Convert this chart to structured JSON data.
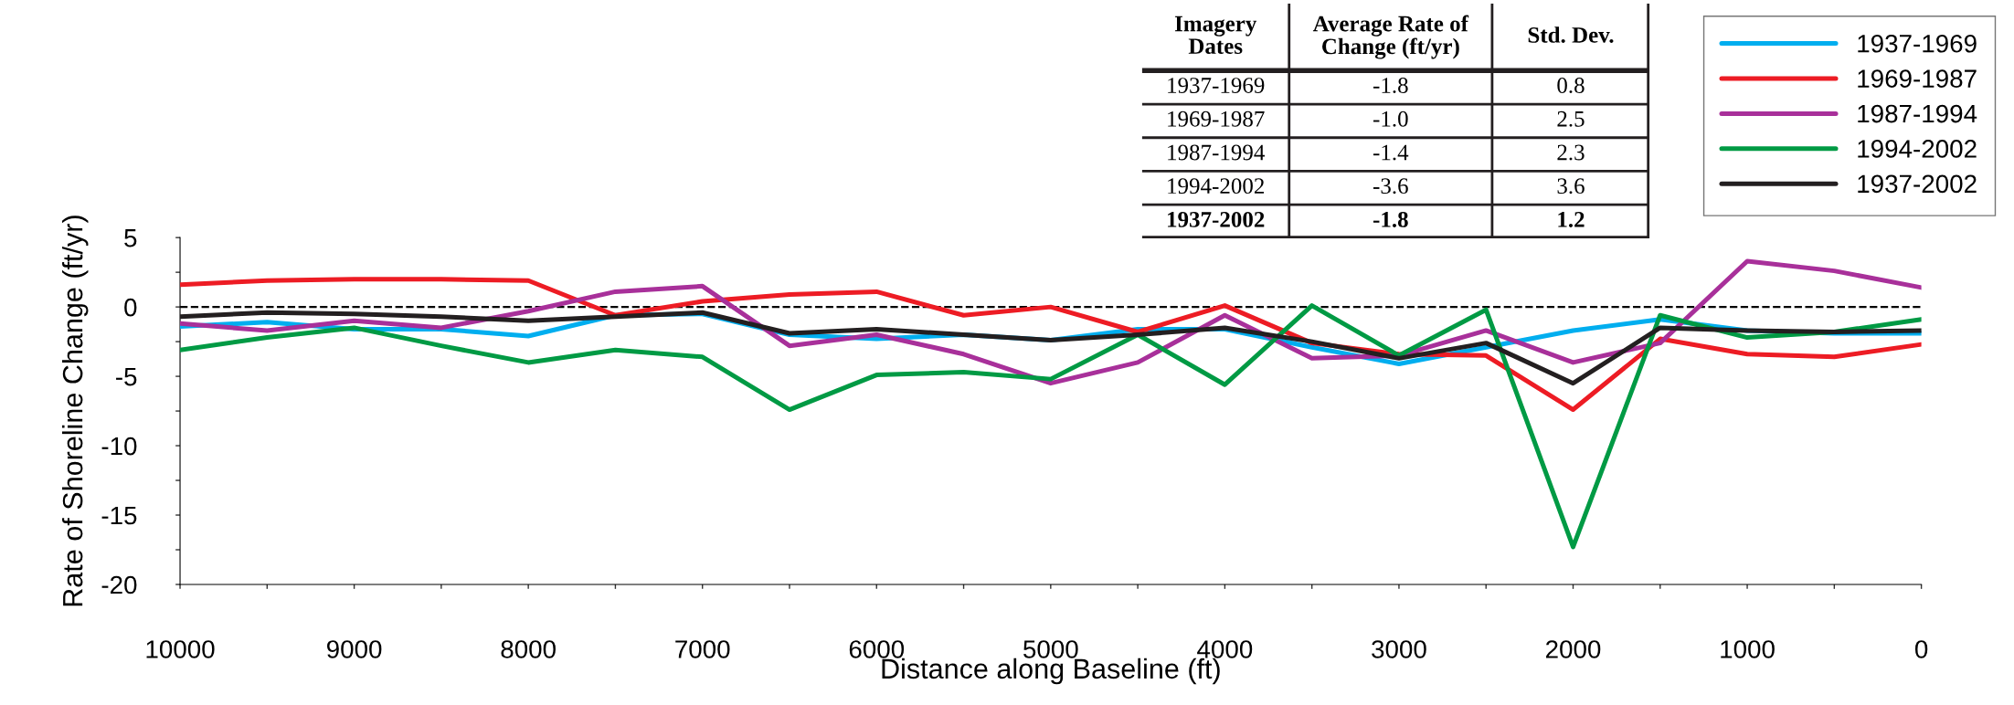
{
  "chart_data": {
    "type": "line",
    "xlabel": "Distance along Baseline (ft)",
    "ylabel": "Rate of Shoreline Change (ft/yr)",
    "x": [
      10000,
      9500,
      9000,
      8500,
      8000,
      7500,
      7000,
      6500,
      6000,
      5500,
      5000,
      4500,
      4000,
      3500,
      3000,
      2500,
      2000,
      1500,
      1000,
      500,
      0
    ],
    "series": [
      {
        "name": "1937-1969",
        "color": "#00aeef",
        "values": [
          -1.4,
          -1.1,
          -1.6,
          -1.6,
          -2.1,
          -0.6,
          -0.5,
          -2.0,
          -2.3,
          -2.0,
          -2.4,
          -1.6,
          -1.6,
          -2.9,
          -4.1,
          -2.9,
          -1.7,
          -0.9,
          -1.7,
          -1.9,
          -1.9
        ]
      },
      {
        "name": "1969-1987",
        "color": "#ed1c24",
        "values": [
          1.6,
          1.9,
          2.0,
          2.0,
          1.9,
          -0.6,
          0.4,
          0.9,
          1.1,
          -0.6,
          0.0,
          -1.8,
          0.1,
          -2.6,
          -3.4,
          -3.5,
          -7.4,
          -2.3,
          -3.4,
          -3.6,
          -2.7
        ]
      },
      {
        "name": "1987-1994",
        "color": "#a8309a",
        "values": [
          -1.2,
          -1.7,
          -1.0,
          -1.5,
          -0.3,
          1.1,
          1.5,
          -2.8,
          -2.0,
          -3.4,
          -5.5,
          -4.0,
          -0.6,
          -3.7,
          -3.5,
          -1.7,
          -4.0,
          -2.6,
          3.3,
          2.6,
          1.4
        ]
      },
      {
        "name": "1994-2002",
        "color": "#009a44",
        "values": [
          -3.1,
          -2.2,
          -1.5,
          -2.8,
          -4.0,
          -3.1,
          -3.6,
          -7.4,
          -4.9,
          -4.7,
          -5.2,
          -2.0,
          -5.6,
          0.1,
          -3.5,
          -0.2,
          -17.3,
          -0.6,
          -2.2,
          -1.8,
          -0.9
        ]
      },
      {
        "name": "1937-2002",
        "color": "#231f20",
        "values": [
          -0.7,
          -0.4,
          -0.5,
          -0.7,
          -1.0,
          -0.7,
          -0.4,
          -1.9,
          -1.6,
          -2.0,
          -2.4,
          -2.0,
          -1.5,
          -2.5,
          -3.7,
          -2.6,
          -5.5,
          -1.5,
          -1.7,
          -1.8,
          -1.7
        ]
      }
    ],
    "xlim": [
      10000,
      0
    ],
    "xticks": [
      10000,
      {
        "value": 9500,
        "label": null
      },
      9000,
      {
        "value": 8500,
        "label": null
      },
      8000,
      {
        "value": 7500,
        "label": null
      },
      7000,
      {
        "value": 6500,
        "label": null
      },
      6000,
      {
        "value": 5500,
        "label": null
      },
      5000,
      {
        "value": 4500,
        "label": null
      },
      4000,
      {
        "value": 3500,
        "label": null
      },
      3000,
      {
        "value": 2500,
        "label": null
      },
      2000,
      {
        "value": 1500,
        "label": null
      },
      1000,
      {
        "value": 500,
        "label": null
      },
      0
    ],
    "ylim": [
      -20,
      5
    ],
    "yticks": [
      -20,
      {
        "value": -17.5,
        "label": null
      },
      -15,
      {
        "value": -12.5,
        "label": null
      },
      -10,
      {
        "value": -7.5,
        "label": null
      },
      -5,
      {
        "value": -2.5,
        "label": null
      },
      0,
      {
        "value": 2.5,
        "label": null
      },
      5
    ],
    "ref_lines": [
      {
        "axis": "y",
        "value": 0,
        "color": "#000000",
        "line_style": "dashed"
      }
    ],
    "legend": "top right",
    "grid": false,
    "line_style": "solid",
    "marker": "none",
    "annotations": [
      "Imagery\nDates",
      "Average Rate of\nChange (ft/yr)",
      "Std. Dev.",
      "1937-1969",
      "-1.8",
      "0.8",
      "1969-1987",
      "-1.0",
      "2.5",
      "1987-1994",
      "-1.4",
      "2.3",
      "1994-2002",
      "-3.6",
      "3.6",
      "1937-2002",
      "-1.8",
      "1.2"
    ]
  }
}
